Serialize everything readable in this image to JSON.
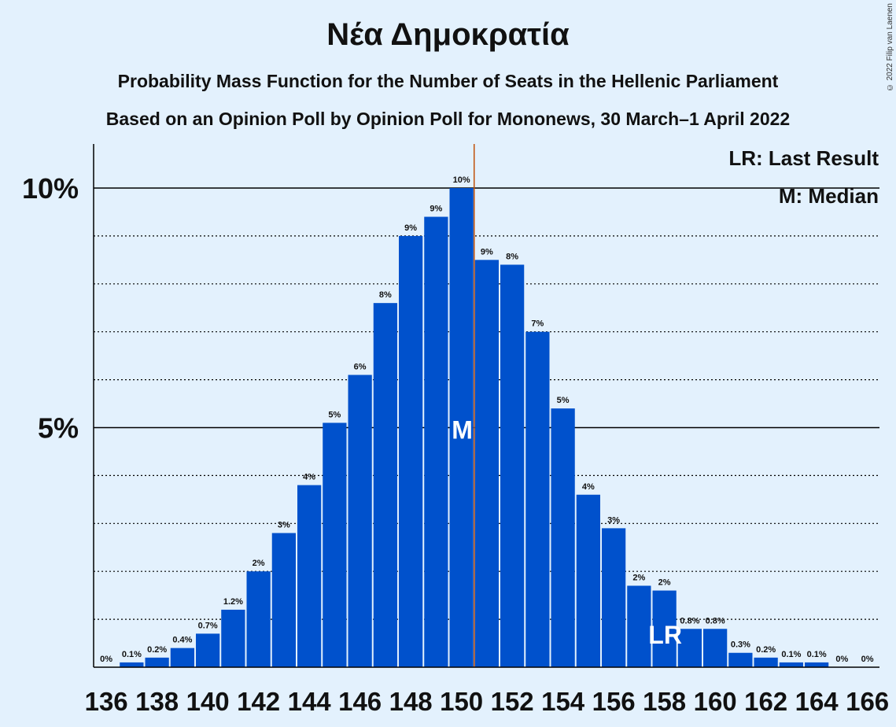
{
  "chart_data": {
    "type": "bar",
    "title": "Νέα Δημοκρατία",
    "subtitle1": "Probability Mass Function for the Number of Seats in the Hellenic Parliament",
    "subtitle2": "Based on an Opinion Poll by Opinion Poll for Mononews, 30 March–1 April 2022",
    "copyright": "© 2022 Filip van Laenen",
    "x": [
      136,
      137,
      138,
      139,
      140,
      141,
      142,
      143,
      144,
      145,
      146,
      147,
      148,
      149,
      150,
      151,
      152,
      153,
      154,
      155,
      156,
      157,
      158,
      159,
      160,
      161,
      162,
      163,
      164,
      165,
      166
    ],
    "values": [
      0,
      0.1,
      0.2,
      0.4,
      0.7,
      1.2,
      2,
      2.8,
      3.8,
      5.1,
      6.1,
      7.6,
      9.0,
      9.4,
      10.0,
      8.5,
      8.4,
      7.0,
      5.4,
      3.6,
      2.9,
      1.7,
      1.6,
      0.8,
      0.8,
      0.3,
      0.2,
      0.1,
      0.1,
      0,
      0
    ],
    "data_labels": [
      "0%",
      "0.1%",
      "0.2%",
      "0.4%",
      "0.7%",
      "1.2%",
      "2%",
      "3%",
      "4%",
      "5%",
      "6%",
      "8%",
      "9%",
      "9%",
      "10%",
      "9%",
      "8%",
      "7%",
      "5%",
      "4%",
      "3%",
      "2%",
      "2%",
      "0.8%",
      "0.8%",
      "0.3%",
      "0.2%",
      "0.1%",
      "0.1%",
      "0%",
      "0%"
    ],
    "x_tick_labels": [
      "136",
      "138",
      "140",
      "142",
      "144",
      "146",
      "148",
      "150",
      "152",
      "154",
      "156",
      "158",
      "160",
      "162",
      "164",
      "166"
    ],
    "y_tick_labels": [
      "5%",
      "10%"
    ],
    "ylim": [
      0,
      11
    ],
    "median_seat": 150,
    "median_marker": "M",
    "last_result_seat": 158,
    "last_result_marker": "LR",
    "legend": [
      "LR: Last Result",
      "M: Median"
    ],
    "legend_position": "top-right",
    "grid": true,
    "colors": {
      "bar": "#0051cc",
      "median_line": "#c0510a",
      "background": "#e3f1fd"
    }
  }
}
